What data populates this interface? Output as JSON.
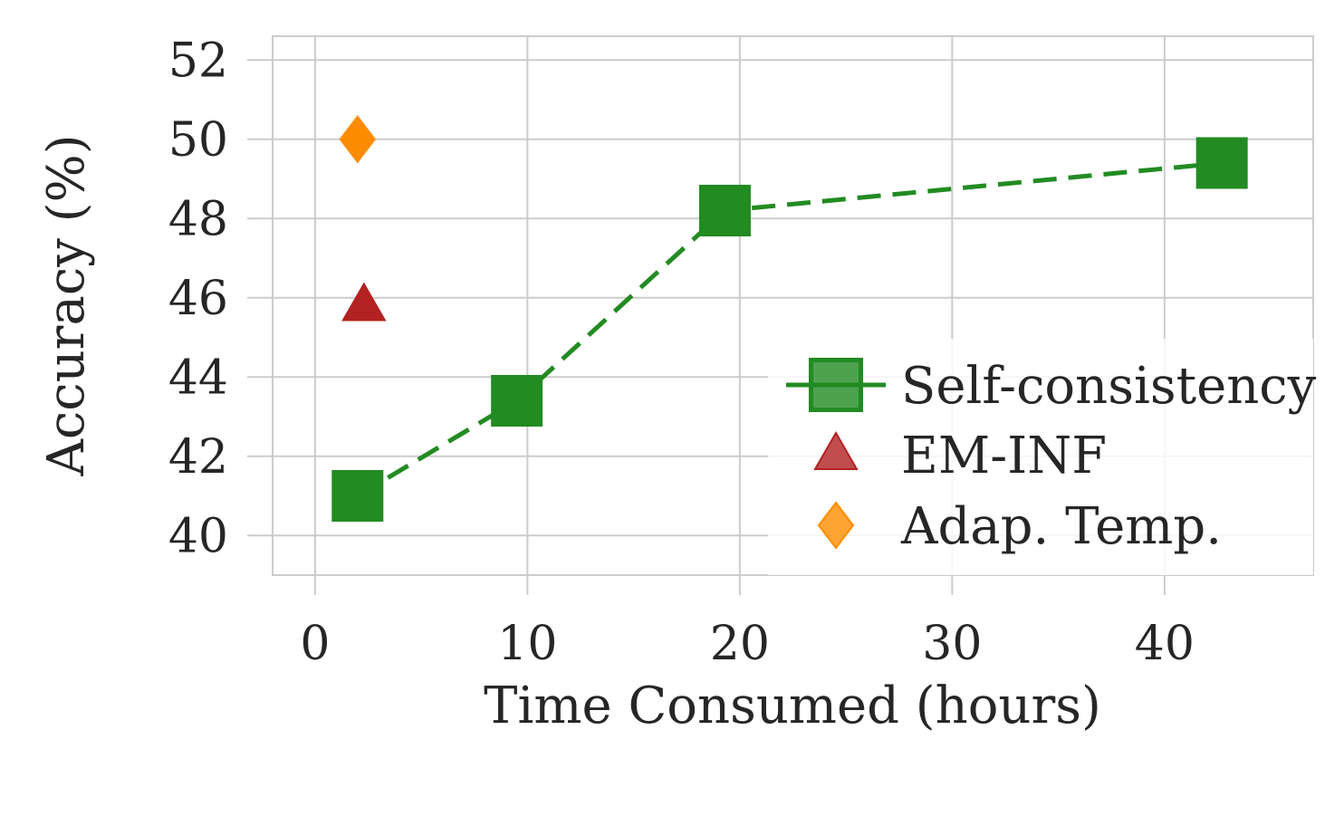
{
  "chart_data": {
    "type": "scatter",
    "xlabel": "Time Consumed (hours)",
    "ylabel": "Accuracy (%)",
    "xlim": [
      -2,
      47
    ],
    "ylim": [
      39,
      52.6
    ],
    "xticks": [
      0,
      10,
      20,
      30,
      40
    ],
    "yticks": [
      40,
      42,
      44,
      46,
      48,
      50,
      52
    ],
    "grid": true,
    "legend_position": "lower-right",
    "series": [
      {
        "name": "Self-consistency",
        "marker": "square",
        "line": "dashed",
        "color": "#228b22",
        "points": [
          {
            "x": 2.0,
            "y": 41.0
          },
          {
            "x": 9.5,
            "y": 43.4
          },
          {
            "x": 19.3,
            "y": 48.2
          },
          {
            "x": 42.7,
            "y": 49.4
          }
        ]
      },
      {
        "name": "EM-INF",
        "marker": "triangle",
        "line": "none",
        "color": "#b22222",
        "points": [
          {
            "x": 2.3,
            "y": 45.8
          }
        ]
      },
      {
        "name": "Adap. Temp.",
        "marker": "diamond",
        "line": "none",
        "color": "#ff8c00",
        "points": [
          {
            "x": 2.0,
            "y": 50.0
          }
        ]
      }
    ]
  }
}
